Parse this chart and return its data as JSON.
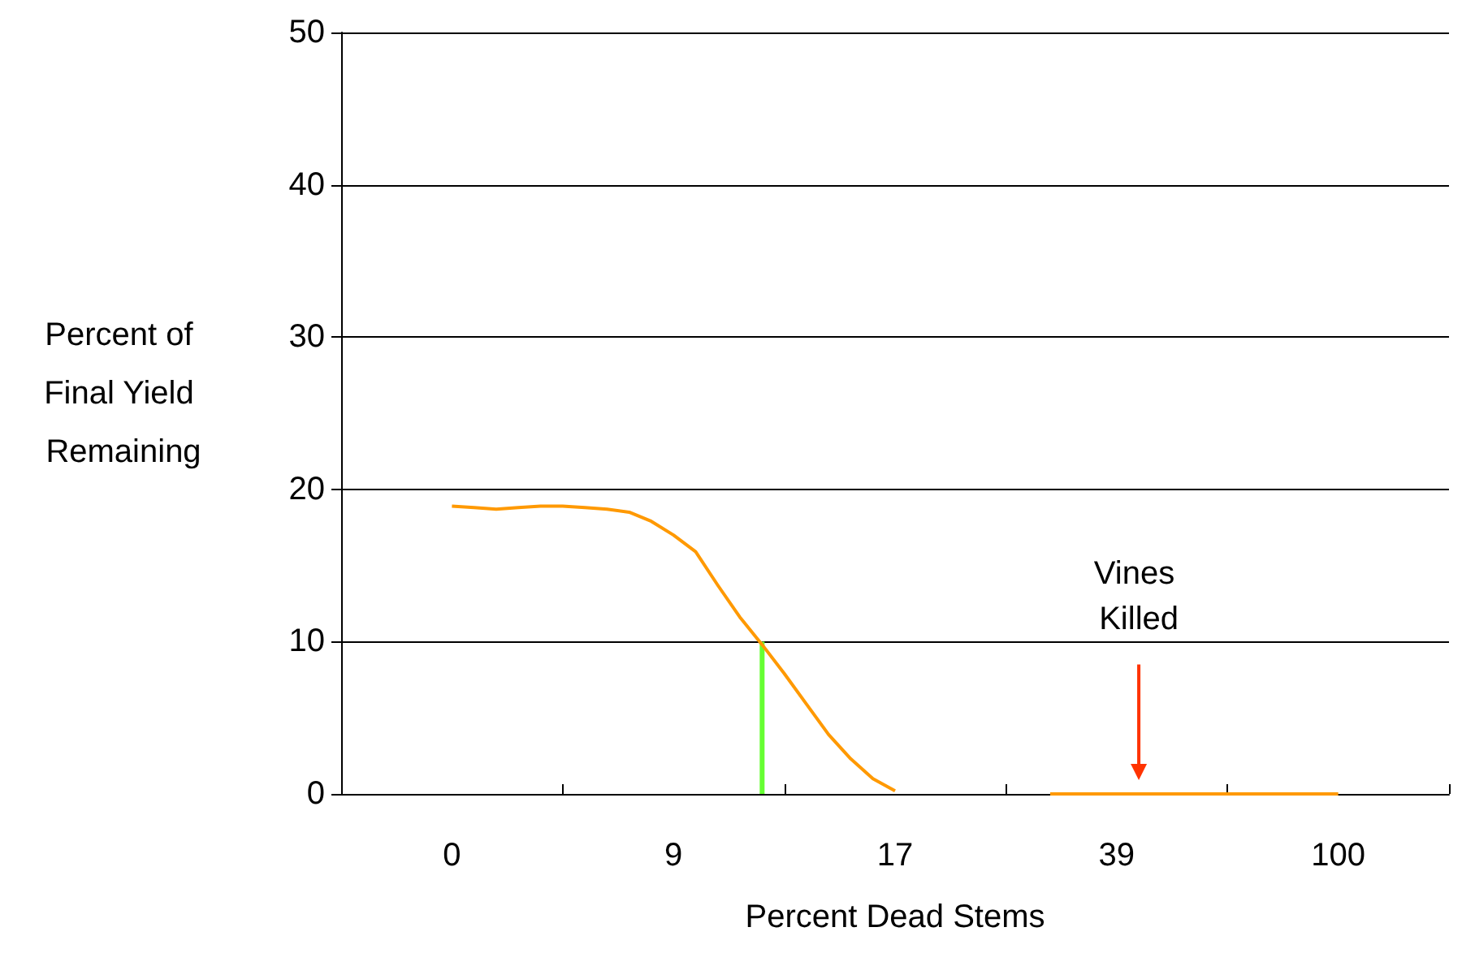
{
  "chart_data": {
    "type": "line",
    "xlabel": "Percent Dead Stems",
    "ylabel": "Percent of Final Yield Remaining",
    "categories": [
      null,
      null,
      null,
      null,
      null,
      "0",
      null,
      null,
      null,
      null,
      null,
      null,
      null,
      null,
      null,
      "9",
      null,
      null,
      null,
      null,
      null,
      null,
      null,
      null,
      null,
      "17",
      null,
      null,
      null,
      null,
      null,
      null,
      null,
      null,
      null,
      "39",
      null,
      null,
      null,
      null,
      null,
      null,
      null,
      null,
      null,
      "100",
      null,
      null,
      null,
      null,
      null
    ],
    "series": [
      {
        "color": "#ff9900",
        "values": [
          null,
          null,
          null,
          null,
          null,
          18.9,
          18.8,
          18.7,
          18.8,
          18.9,
          18.9,
          18.8,
          18.7,
          18.5,
          17.9,
          17.0,
          15.9,
          13.7,
          11.6,
          9.8,
          7.9,
          5.9,
          3.9,
          2.3,
          1.0,
          0.2,
          null,
          null,
          null,
          null,
          null,
          null,
          0,
          0,
          0,
          0,
          0,
          0,
          0,
          0,
          0,
          0,
          0,
          0,
          0,
          0,
          null,
          null,
          null,
          null,
          null
        ]
      },
      {
        "type": "bar",
        "color": "#66ff33",
        "values": [
          null,
          null,
          null,
          null,
          null,
          null,
          null,
          null,
          null,
          null,
          null,
          null,
          null,
          null,
          null,
          null,
          null,
          null,
          null,
          10,
          null,
          null,
          null,
          null,
          null,
          null,
          null,
          null,
          null,
          null,
          null,
          null,
          null,
          null,
          null,
          null,
          null,
          null,
          null,
          null,
          null,
          null,
          null,
          null,
          null,
          null,
          null,
          null,
          null,
          null,
          null
        ]
      }
    ],
    "ylim": [
      0,
      50
    ],
    "yticks": [
      0,
      10,
      20,
      30,
      40,
      50
    ],
    "grid": "y",
    "marker": "none",
    "line_style": "solid",
    "annotations": [
      "Vines Killed"
    ]
  }
}
